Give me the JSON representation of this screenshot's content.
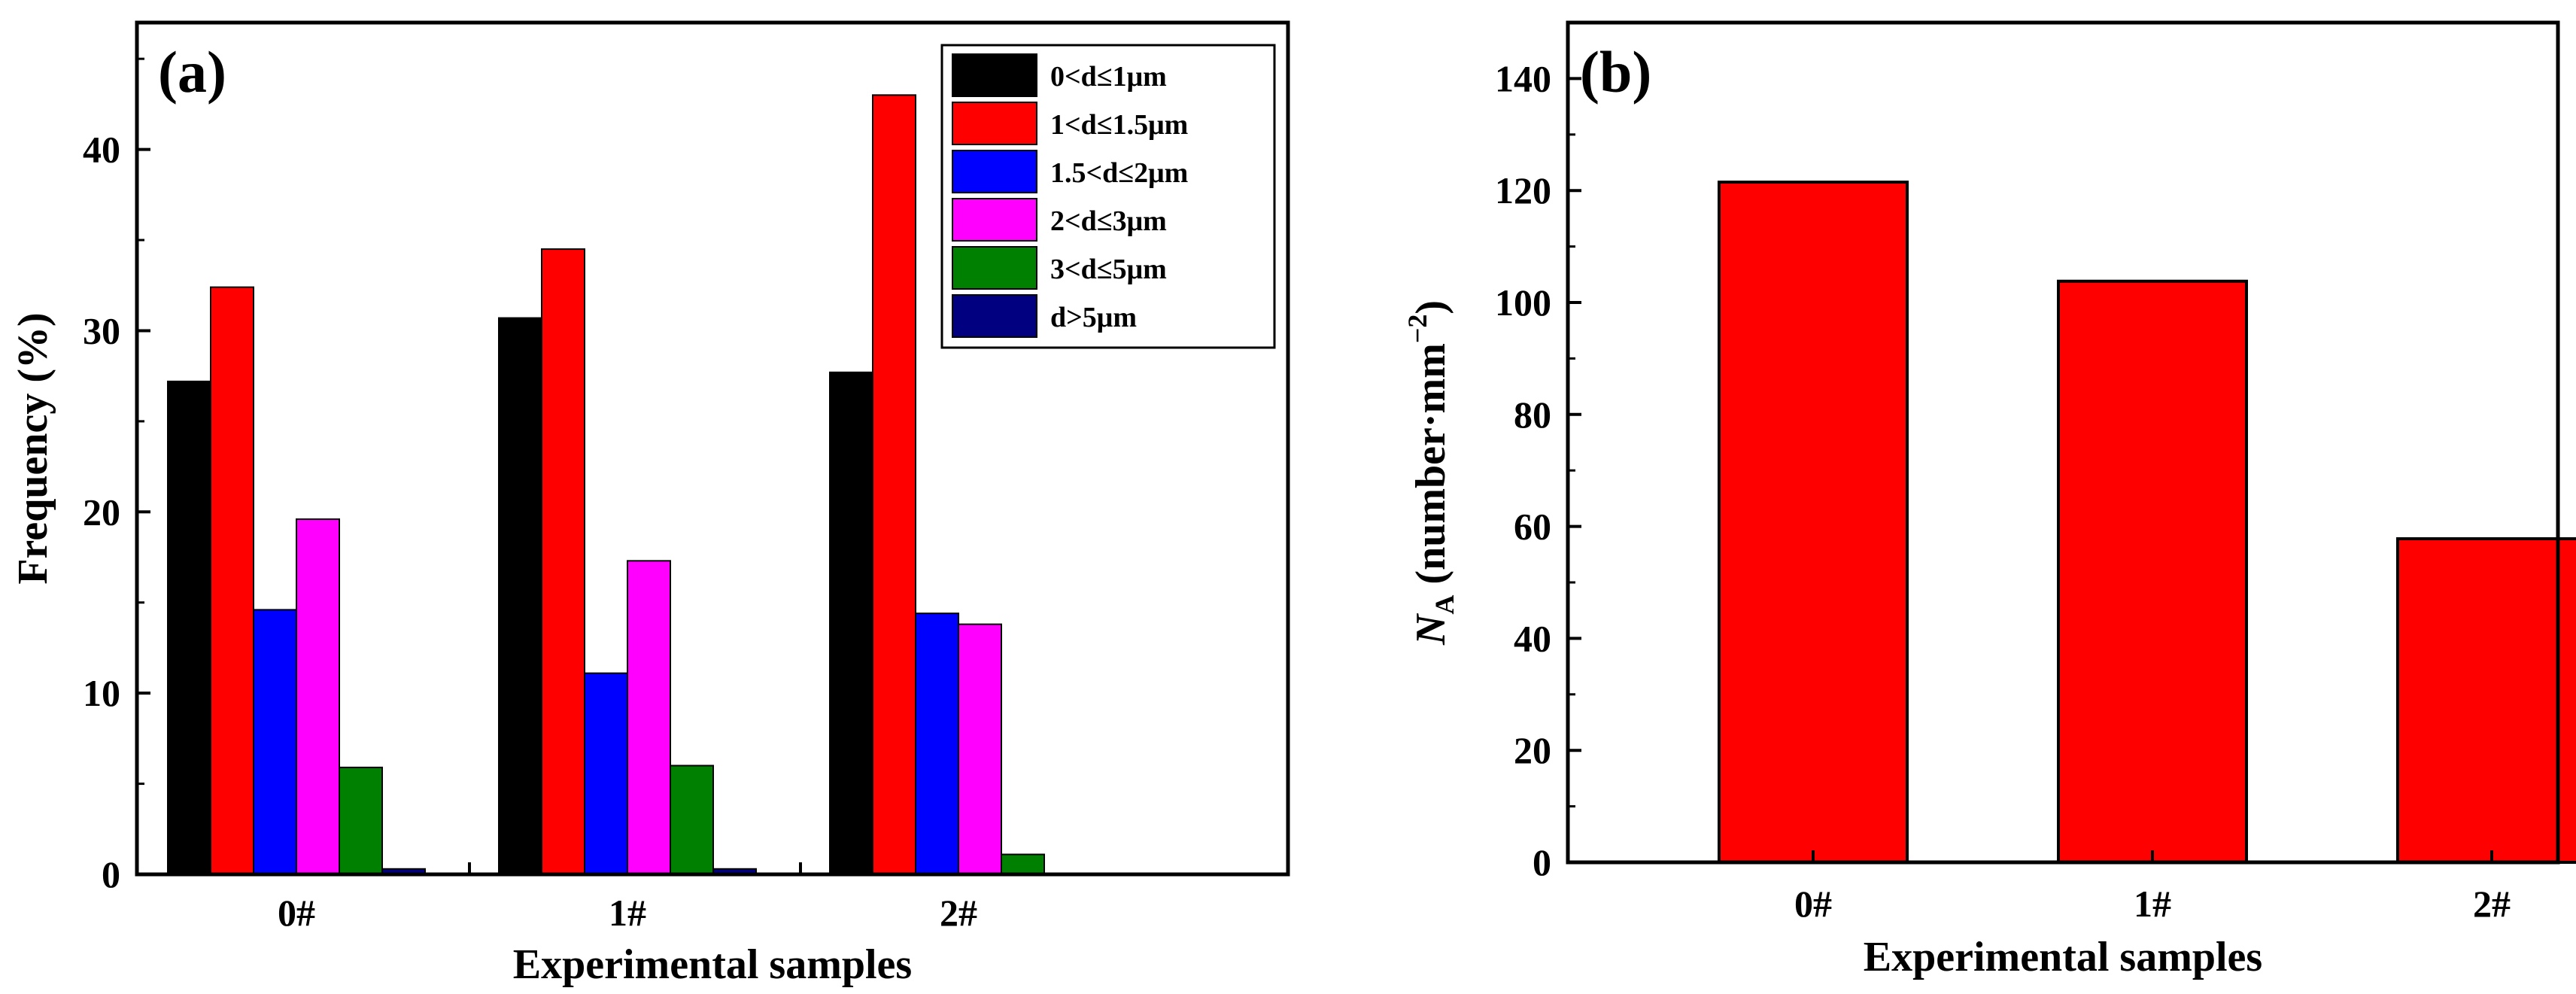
{
  "chart_data": [
    {
      "panel": "(a)",
      "type": "bar",
      "xlabel": "Experimental samples",
      "ylabel": "Frequency (%)",
      "ylim": [
        0,
        47
      ],
      "yticks": [
        0,
        10,
        20,
        30,
        40
      ],
      "categories": [
        "0#",
        "1#",
        "2#"
      ],
      "series": [
        {
          "name": "0<d≤1μm",
          "color": "#000000",
          "values": [
            27.2,
            30.7,
            27.7
          ]
        },
        {
          "name": "1<d≤1.5μm",
          "color": "#ff0000",
          "values": [
            32.4,
            34.5,
            43.0
          ]
        },
        {
          "name": "1.5<d≤2μm",
          "color": "#0000ff",
          "values": [
            14.6,
            11.1,
            14.4
          ]
        },
        {
          "name": "2<d≤3μm",
          "color": "#ff00ff",
          "values": [
            19.6,
            17.3,
            13.8
          ]
        },
        {
          "name": "3<d≤5μm",
          "color": "#008000",
          "values": [
            5.9,
            6.0,
            1.1
          ]
        },
        {
          "name": "d>5μm",
          "color": "#000080",
          "values": [
            0.3,
            0.3,
            0
          ]
        }
      ],
      "legend_position": "top-right"
    },
    {
      "panel": "(b)",
      "type": "bar",
      "xlabel": "Experimental samples",
      "ylabel_prefix": "N",
      "ylabel_sub": "A",
      "ylabel_main": " (number·mm",
      "ylabel_sup": "−2",
      "ylabel_suffix": ")",
      "ylim": [
        0,
        150
      ],
      "yticks": [
        0,
        20,
        40,
        60,
        80,
        100,
        120,
        140
      ],
      "categories": [
        "0#",
        "1#",
        "2#"
      ],
      "values": [
        121.5,
        103.8,
        57.8
      ],
      "color": "#ff0000"
    }
  ]
}
